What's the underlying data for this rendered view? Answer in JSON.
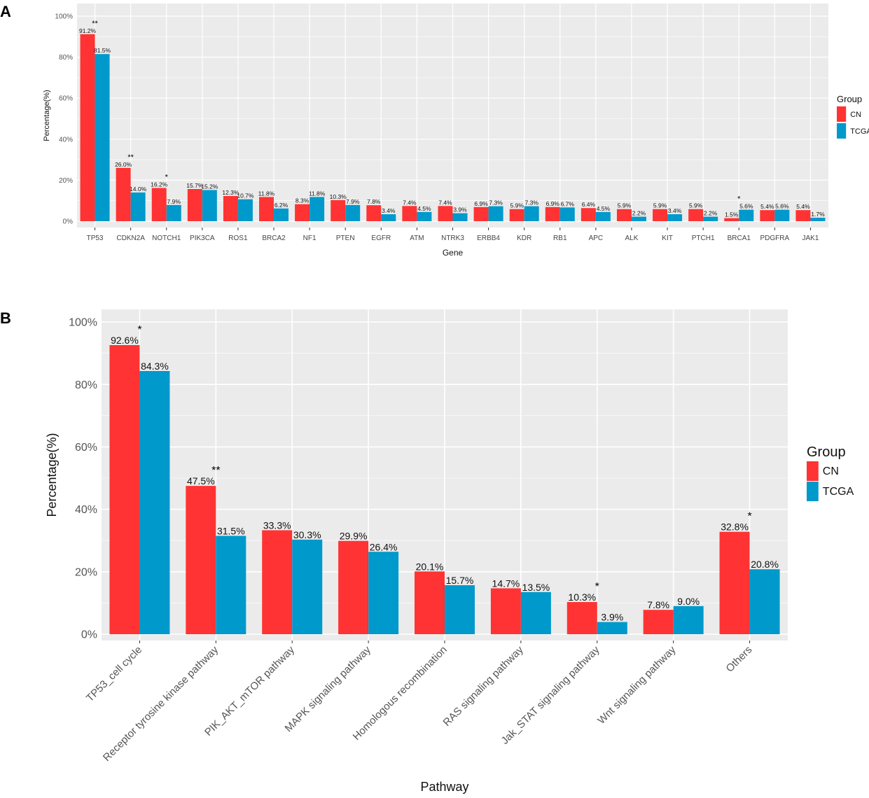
{
  "colors": {
    "CN": "#FF3333",
    "TCGA": "#0099CC",
    "panel_bg": "#EBEBEB",
    "grid": "#FFFFFF"
  },
  "chart_data": [
    {
      "panel": "A",
      "type": "bar",
      "title": "",
      "xlabel": "Gene",
      "ylabel": "Percentage(%)",
      "ylim": [
        0,
        100
      ],
      "yticks": [
        "0%",
        "20%",
        "40%",
        "60%",
        "80%",
        "100%"
      ],
      "legend": {
        "title": "Group",
        "position": "right"
      },
      "categories": [
        "TP53",
        "CDKN2A",
        "NOTCH1",
        "PIK3CA",
        "ROS1",
        "BRCA2",
        "NF1",
        "PTEN",
        "EGFR",
        "ATM",
        "NTRK3",
        "ERBB4",
        "KDR",
        "RB1",
        "APC",
        "ALK",
        "KIT",
        "PTCH1",
        "BRCA1",
        "PDGFRA",
        "JAK1"
      ],
      "series": [
        {
          "name": "CN",
          "values": [
            91.2,
            26.0,
            16.2,
            15.7,
            12.3,
            11.8,
            8.3,
            10.3,
            7.8,
            7.4,
            7.4,
            6.9,
            5.9,
            6.9,
            6.4,
            5.9,
            5.9,
            5.9,
            1.5,
            5.4,
            5.4
          ],
          "labels": [
            "91.2%",
            "26.0%",
            "16.2%",
            "15.7%",
            "12.3%",
            "11.8%",
            "8.3%",
            "10.3%",
            "7.8%",
            "7.4%",
            "7.4%",
            "6.9%",
            "5.9%",
            "6.9%",
            "6.4%",
            "5.9%",
            "5.9%",
            "5.9%",
            "1.5%",
            "5.4%",
            "5.4%"
          ]
        },
        {
          "name": "TCGA",
          "values": [
            81.5,
            14.0,
            7.9,
            15.2,
            10.7,
            6.2,
            11.8,
            7.9,
            3.4,
            4.5,
            3.9,
            7.3,
            7.3,
            6.7,
            4.5,
            2.2,
            3.4,
            2.2,
            5.6,
            5.6,
            1.7
          ],
          "labels": [
            "81.5%",
            "14.0%",
            "7.9%",
            "15.2%",
            "10.7%",
            "6.2%",
            "11.8%",
            "7.9%",
            "3.4%",
            "4.5%",
            "3.9%",
            "7.3%",
            "7.3%",
            "6.7%",
            "4.5%",
            "2.2%",
            "3.4%",
            "2.2%",
            "5.6%",
            "5.6%",
            "1.7%"
          ]
        }
      ],
      "significance": [
        "**",
        "**",
        "*",
        "",
        "",
        "",
        "",
        "",
        "",
        "",
        "",
        "",
        "",
        "",
        "",
        "",
        "",
        "",
        "*",
        "",
        ""
      ]
    },
    {
      "panel": "B",
      "type": "bar",
      "title": "",
      "xlabel": "Pathway",
      "ylabel": "Percentage(%)",
      "ylim": [
        0,
        100
      ],
      "yticks": [
        "0%",
        "20%",
        "40%",
        "60%",
        "80%",
        "100%"
      ],
      "legend": {
        "title": "Group",
        "position": "right"
      },
      "categories": [
        "TP53_cell cycle",
        "Receptor tyrosine kinase pathway",
        "PIK_AKT_mTOR pathway",
        "MAPK signaling pathway",
        "Homologous recombination",
        "RAS signaling pathway",
        "Jak_STAT signaling pathway",
        "Wnt signaling pathway",
        "Others"
      ],
      "series": [
        {
          "name": "CN",
          "values": [
            92.6,
            47.5,
            33.3,
            29.9,
            20.1,
            14.7,
            10.3,
            7.8,
            32.8
          ],
          "labels": [
            "92.6%",
            "47.5%",
            "33.3%",
            "29.9%",
            "20.1%",
            "14.7%",
            "10.3%",
            "7.8%",
            "32.8%"
          ]
        },
        {
          "name": "TCGA",
          "values": [
            84.3,
            31.5,
            30.3,
            26.4,
            15.7,
            13.5,
            3.9,
            9.0,
            20.8
          ],
          "labels": [
            "84.3%",
            "31.5%",
            "30.3%",
            "26.4%",
            "15.7%",
            "13.5%",
            "3.9%",
            "9.0%",
            "20.8%"
          ]
        }
      ],
      "significance": [
        "*",
        "**",
        "",
        "",
        "",
        "",
        "*",
        "",
        "*"
      ]
    }
  ]
}
